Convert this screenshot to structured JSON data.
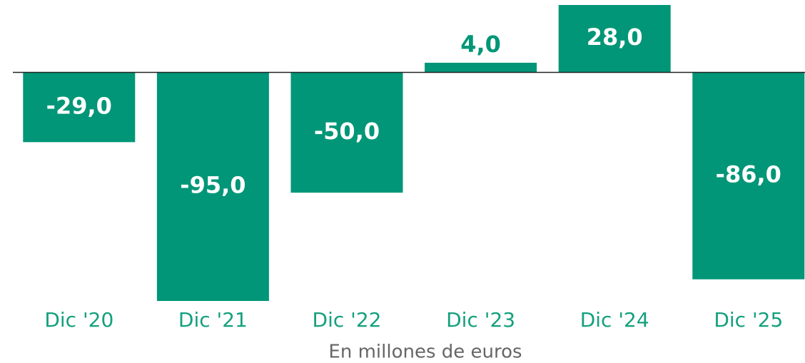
{
  "chart_data": {
    "type": "bar",
    "x_label": "En millones de euros",
    "categories": [
      "Dic '20",
      "Dic '21",
      "Dic '22",
      "Dic '23",
      "Dic '24",
      "Dic '25"
    ],
    "values": [
      -29.0,
      -95.0,
      -50.0,
      4.0,
      28.0,
      -86.0
    ],
    "value_labels": [
      "-29,0",
      "-95,0",
      "-50,0",
      "4,0",
      "28,0",
      "-86,0"
    ],
    "color": "#009677"
  }
}
